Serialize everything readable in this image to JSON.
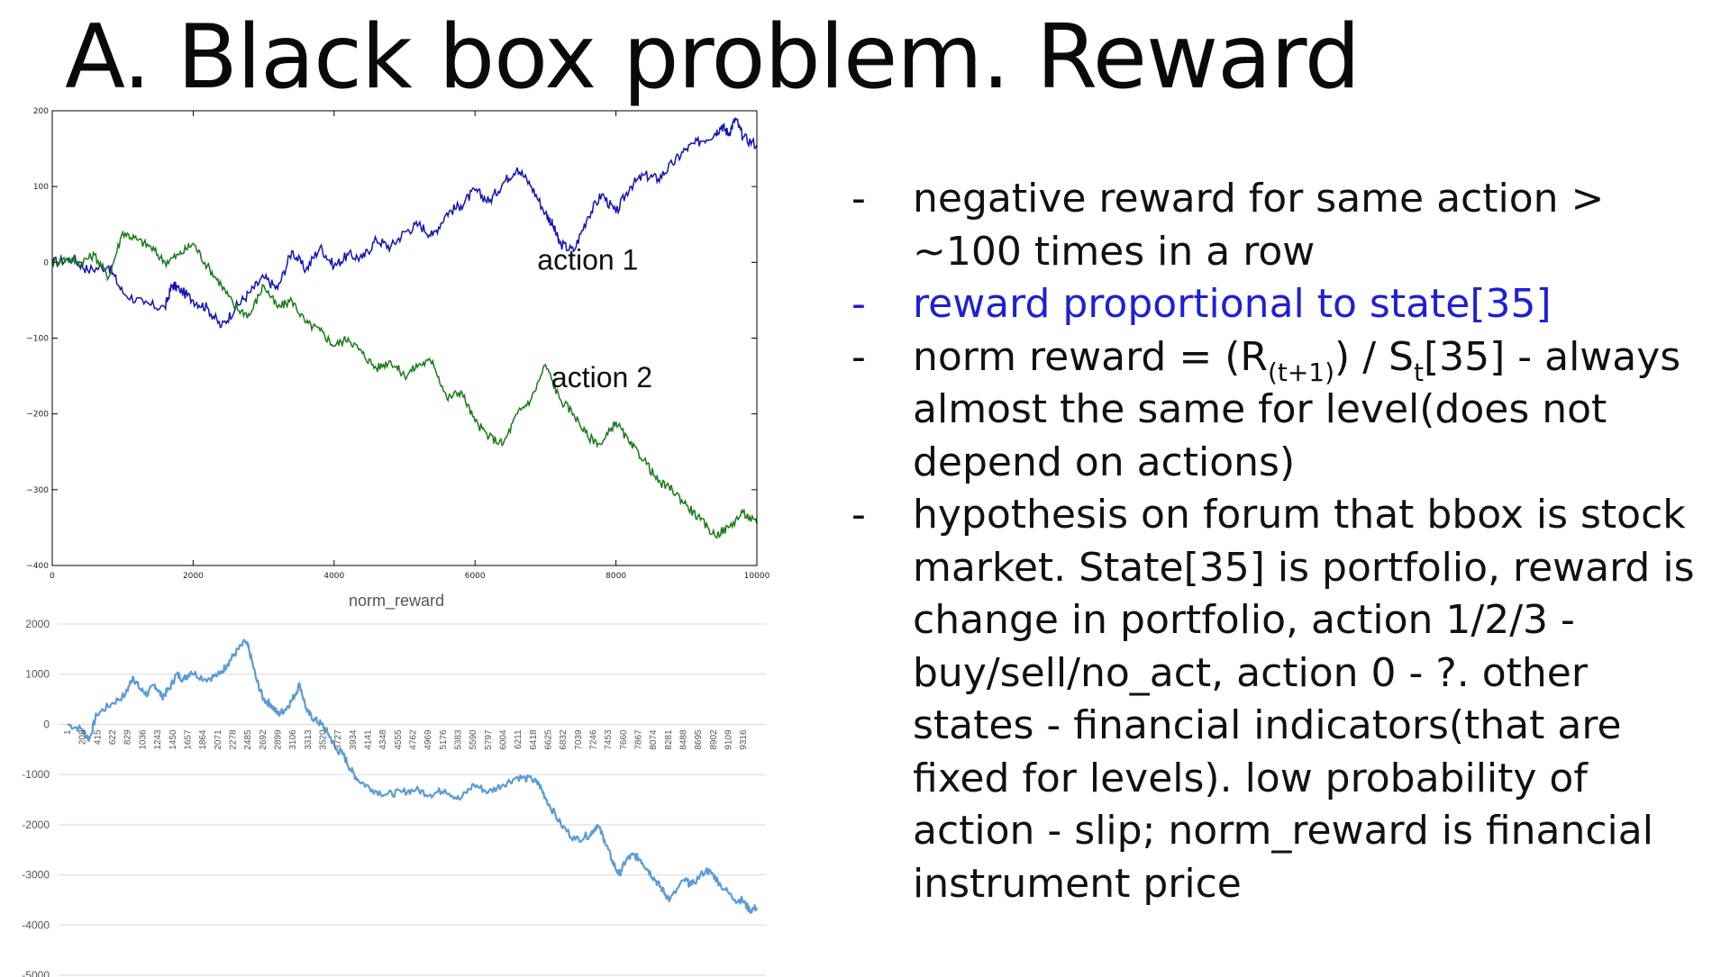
{
  "slide": {
    "title": "A. Black box problem. Reward",
    "bullets": [
      {
        "dash": "-",
        "parts": [
          {
            "t": "negative reward for same action > ~100 times in a row"
          }
        ]
      },
      {
        "dash": "-",
        "color": "#1f1fd6",
        "parts": [
          {
            "t": "reward proportional to state[35]"
          }
        ]
      },
      {
        "dash": "-",
        "parts": [
          {
            "t": "norm reward = (R"
          },
          {
            "t": "(t+1)",
            "sub": true
          },
          {
            "t": ") / S"
          },
          {
            "t": "t",
            "sub": true
          },
          {
            "t": "[35] - always almost the same for level(does not depend on actions)"
          }
        ]
      },
      {
        "dash": "-",
        "parts": [
          {
            "t": "hypothesis on forum that bbox is  stock market. State[35] is portfolio, reward is change in portfolio, action 1/2/3 - buy/sell/no_act, action 0 - ?. other states - financial indicators(that are fixed for levels). low probability of action - slip; norm_reward is financial instrument price"
          }
        ]
      }
    ]
  },
  "chart_data": [
    {
      "type": "line",
      "title": "",
      "xlabel": "",
      "ylabel": "",
      "xlim": [
        0,
        10000
      ],
      "ylim": [
        -400,
        200
      ],
      "xticks": [
        "0",
        "2000",
        "4000",
        "6000",
        "8000",
        "10000"
      ],
      "yticks": [
        "200",
        "100",
        "0",
        "−100",
        "−200",
        "−300",
        "−400"
      ],
      "grid": false,
      "annotations": [
        {
          "text": "action 1",
          "x": 7600,
          "y": 0
        },
        {
          "text": "action 2",
          "x": 7800,
          "y": -155
        }
      ],
      "series": [
        {
          "name": "action 1",
          "color": "#1414b4",
          "x": [
            0,
            300,
            500,
            800,
            1000,
            1300,
            1600,
            1700,
            1800,
            2000,
            2200,
            2400,
            2600,
            2800,
            3000,
            3200,
            3400,
            3600,
            3800,
            4000,
            4200,
            4400,
            4600,
            4800,
            5000,
            5200,
            5400,
            5600,
            5800,
            6000,
            6200,
            6400,
            6600,
            6800,
            7000,
            7100,
            7200,
            7400,
            7600,
            7800,
            8000,
            8200,
            8400,
            8600,
            8800,
            9000,
            9200,
            9400,
            9500,
            9600,
            9700,
            9800,
            10000
          ],
          "y": [
            0,
            5,
            -10,
            -5,
            -40,
            -55,
            -60,
            -30,
            -35,
            -50,
            -60,
            -85,
            -60,
            -40,
            -20,
            -35,
            15,
            -10,
            20,
            -5,
            10,
            5,
            30,
            20,
            40,
            50,
            35,
            65,
            75,
            95,
            80,
            105,
            125,
            100,
            65,
            50,
            25,
            15,
            60,
            90,
            65,
            100,
            115,
            110,
            130,
            150,
            160,
            170,
            180,
            170,
            190,
            165,
            155
          ]
        },
        {
          "name": "action 2",
          "color": "#1a7a1a",
          "x": [
            0,
            200,
            400,
            600,
            800,
            1000,
            1200,
            1400,
            1600,
            1800,
            2000,
            2200,
            2400,
            2600,
            2800,
            3000,
            3200,
            3400,
            3600,
            3800,
            4000,
            4200,
            4400,
            4600,
            4800,
            5000,
            5200,
            5400,
            5600,
            5800,
            6000,
            6200,
            6400,
            6600,
            6800,
            7000,
            7200,
            7400,
            7600,
            7800,
            8000,
            8200,
            8400,
            8600,
            8800,
            9000,
            9200,
            9400,
            9600,
            9800,
            10000
          ],
          "y": [
            0,
            5,
            0,
            10,
            -20,
            40,
            30,
            20,
            0,
            10,
            25,
            -5,
            -30,
            -60,
            -70,
            -30,
            -60,
            -50,
            -80,
            -90,
            -110,
            -100,
            -120,
            -140,
            -130,
            -150,
            -135,
            -130,
            -180,
            -170,
            -210,
            -230,
            -240,
            -200,
            -180,
            -135,
            -180,
            -200,
            -230,
            -240,
            -210,
            -240,
            -260,
            -290,
            -300,
            -320,
            -340,
            -360,
            -350,
            -330,
            -345
          ]
        }
      ]
    },
    {
      "type": "line",
      "title": "norm_reward",
      "xlabel": "",
      "ylabel": "",
      "ylim": [
        -5000,
        2000
      ],
      "yticks": [
        "2000",
        "1000",
        "0",
        "-1000",
        "-2000",
        "-3000",
        "-4000",
        "-5000"
      ],
      "grid": true,
      "categories": [
        "1",
        "208",
        "415",
        "622",
        "829",
        "1036",
        "1243",
        "1450",
        "1657",
        "1864",
        "2071",
        "2278",
        "2485",
        "2692",
        "2899",
        "3106",
        "3313",
        "3520",
        "3727",
        "3934",
        "4141",
        "4348",
        "4555",
        "4762",
        "4969",
        "5176",
        "5383",
        "5590",
        "5797",
        "6004",
        "6211",
        "6418",
        "6625",
        "6832",
        "7039",
        "7246",
        "7453",
        "7660",
        "7867",
        "8074",
        "8281",
        "8488",
        "8695",
        "8902",
        "9109",
        "9316"
      ],
      "series": [
        {
          "name": "",
          "color": "#5b9bd5",
          "x": [
            0,
            200,
            300,
            400,
            600,
            800,
            900,
            1000,
            1100,
            1200,
            1300,
            1400,
            1500,
            1600,
            1700,
            1900,
            2100,
            2200,
            2300,
            2450,
            2500,
            2600,
            2700,
            2800,
            2900,
            3000,
            3100,
            3200,
            3300,
            3400,
            3500,
            3600,
            3700,
            3800,
            3900,
            4000,
            4200,
            4400,
            4600,
            4800,
            5000,
            5200,
            5400,
            5600,
            5800,
            6000,
            6200,
            6400,
            6500,
            6600,
            6800,
            7000,
            7200,
            7300,
            7400,
            7500,
            7600,
            7700,
            7800,
            7900,
            8000,
            8100,
            8200,
            8300,
            8500,
            8600,
            8800,
            8900,
            9000,
            9200,
            9300,
            9400,
            9500
          ],
          "y": [
            0,
            -100,
            -300,
            200,
            400,
            600,
            950,
            700,
            600,
            800,
            550,
            700,
            1000,
            900,
            1050,
            900,
            1000,
            1200,
            1400,
            1650,
            1500,
            900,
            500,
            400,
            200,
            300,
            500,
            800,
            250,
            100,
            0,
            -200,
            -500,
            -600,
            -900,
            -1100,
            -1300,
            -1400,
            -1350,
            -1300,
            -1400,
            -1300,
            -1500,
            -1200,
            -1350,
            -1200,
            -1050,
            -1100,
            -1200,
            -1500,
            -2000,
            -2300,
            -2200,
            -2000,
            -2300,
            -2700,
            -3000,
            -2700,
            -2600,
            -2700,
            -2900,
            -3100,
            -3300,
            -3500,
            -3100,
            -3200,
            -2900,
            -3000,
            -3200,
            -3500,
            -3500,
            -3700,
            -3650
          ]
        }
      ]
    }
  ]
}
